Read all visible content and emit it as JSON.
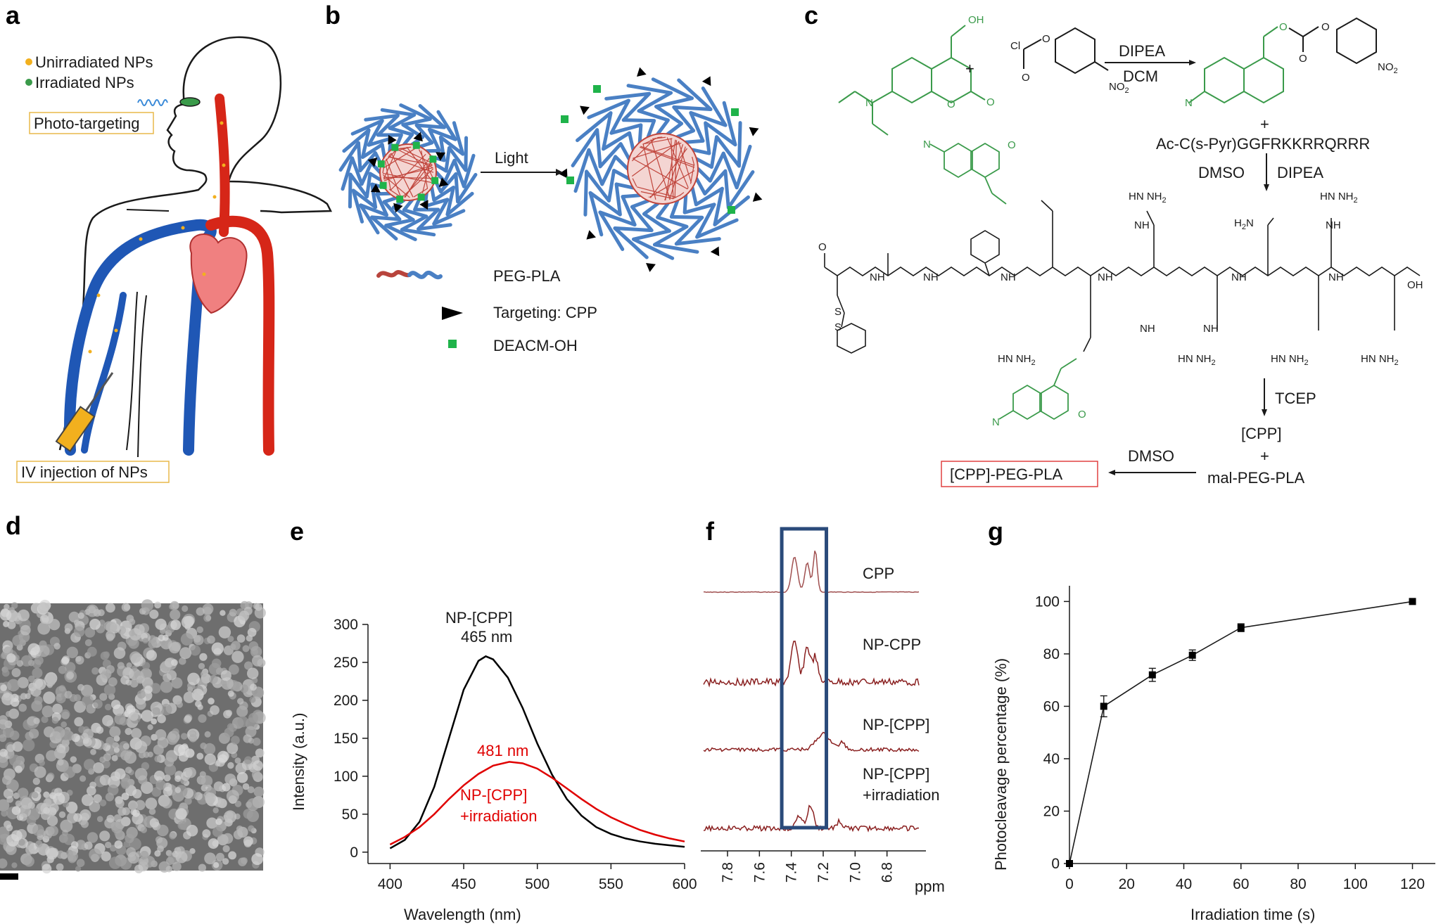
{
  "panels": {
    "a": "a",
    "b": "b",
    "c": "c",
    "d": "d",
    "e": "e",
    "f": "f",
    "g": "g"
  },
  "panel_a": {
    "legend_unirradiated": "Unirradiated NPs",
    "legend_irradiated": "Irradiated NPs",
    "photo_targeting": "Photo-targeting",
    "iv_injection": "IV injection of NPs",
    "colors": {
      "unirradiated": "#f2b01e",
      "irradiated": "#3a9a4a",
      "vein": "#1f57b5",
      "artery": "#d62618",
      "heart": "#f08080"
    }
  },
  "panel_b": {
    "light": "Light",
    "legend_peg_pla": "PEG-PLA",
    "legend_cpp": "Targeting: CPP",
    "legend_deacm": "DEACM-OH"
  },
  "panel_c": {
    "plus": "+",
    "dipea": "DIPEA",
    "dcm": "DCM",
    "peptide": "Ac-C(s-Pyr)GGFRKKRRQRRR",
    "dmso1": "DMSO",
    "dipea2": "DIPEA",
    "tcep": "TCEP",
    "cpp": "[CPP]",
    "mal_peg_pla": "mal-PEG-PLA",
    "dmso2": "DMSO",
    "product": "[CPP]-PEG-PLA",
    "atoms": {
      "oh": "OH",
      "cl": "Cl",
      "o": "O",
      "no2": "NO",
      "no2_sub": "2",
      "n": "N",
      "nh": "NH",
      "hn": "HN",
      "h": "H",
      "nh2": "NH",
      "nh2_sub": "2",
      "h2n": "H",
      "h2n_tail": "N",
      "s": "S",
      "oh_acid": "OH",
      "hnh2": "HN",
      "nh_label": "NH"
    }
  },
  "panel_d": {
    "scale_bar": ""
  },
  "chart_data": [
    {
      "type": "line",
      "title": "",
      "xlabel": "Wavelength (nm)",
      "ylabel": "Intensity (a.u.)",
      "xlim": [
        385,
        600
      ],
      "ylim": [
        -15,
        300
      ],
      "xticks": [
        400,
        450,
        500,
        550,
        600
      ],
      "yticks": [
        0,
        50,
        100,
        150,
        200,
        250,
        300
      ],
      "series": [
        {
          "name": "NP-[CPP]",
          "color": "#000000",
          "x": [
            400,
            410,
            420,
            430,
            440,
            450,
            460,
            465,
            470,
            480,
            490,
            500,
            510,
            520,
            530,
            540,
            550,
            560,
            570,
            580,
            590,
            600
          ],
          "values": [
            5,
            16,
            40,
            86,
            150,
            214,
            252,
            258,
            254,
            230,
            190,
            143,
            102,
            70,
            48,
            33,
            24,
            18,
            14,
            11,
            9,
            7
          ]
        },
        {
          "name": "NP-[CPP] +irradiation",
          "color": "#e00000",
          "x": [
            400,
            410,
            420,
            430,
            440,
            450,
            460,
            470,
            481,
            490,
            500,
            510,
            520,
            530,
            540,
            550,
            560,
            570,
            580,
            590,
            600
          ],
          "values": [
            10,
            20,
            33,
            50,
            70,
            88,
            103,
            114,
            119,
            117,
            110,
            98,
            84,
            70,
            57,
            46,
            37,
            29,
            23,
            18,
            14
          ]
        }
      ],
      "annotations": {
        "black_name": "NP-[CPP]",
        "black_peak": "465 nm",
        "red_peak": "481 nm",
        "red_name_1": "NP-[CPP]",
        "red_name_2": "+irradiation"
      }
    },
    {
      "type": "line",
      "title": "",
      "xlabel": "ppm",
      "xlim": [
        7.95,
        6.6
      ],
      "xticks": [
        7.8,
        7.6,
        7.4,
        7.2,
        7.0,
        6.8
      ],
      "xticklabels": [
        "7.8",
        "7.6",
        "7.4",
        "7.2",
        "7.0",
        "6.8"
      ],
      "highlight_range": [
        7.46,
        7.18
      ],
      "series": [
        {
          "name": "CPP"
        },
        {
          "name": "NP-CPP"
        },
        {
          "name": "NP-[CPP]"
        },
        {
          "name": "NP-[CPP] +irradiation"
        }
      ],
      "labels": [
        "CPP",
        "NP-CPP",
        "NP-[CPP]",
        "NP-[CPP]",
        "+irradiation"
      ]
    },
    {
      "type": "line",
      "title": "",
      "xlabel": "Irradiation time (s)",
      "ylabel": "Photocleavage percentage (%)",
      "xlim": [
        0,
        128
      ],
      "ylim": [
        0,
        106
      ],
      "xticks": [
        0,
        20,
        40,
        60,
        80,
        100,
        120
      ],
      "yticks": [
        0,
        20,
        40,
        60,
        80,
        100
      ],
      "x": [
        0,
        12,
        29,
        43,
        60,
        120
      ],
      "values": [
        0,
        60,
        72,
        79.5,
        90,
        100
      ],
      "errors": [
        0,
        4,
        2.5,
        2,
        1.5,
        0
      ]
    }
  ]
}
